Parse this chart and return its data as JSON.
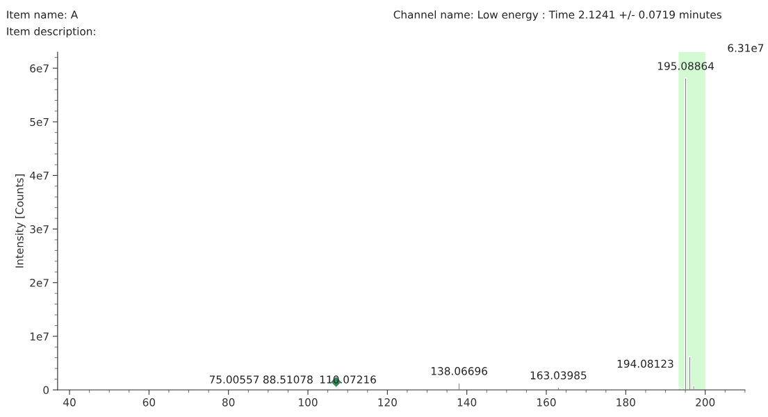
{
  "chart_data": {
    "type": "bar",
    "ylabel": "Intensity [Counts]",
    "annotations": [
      "Item name: A",
      "Item description:",
      "Channel name: Low energy : Time 2.1241 +/- 0.0719 minutes",
      "6.31e7",
      "75.00557",
      "88.51078",
      "110.07216",
      {
        "text": "138.06696",
        "x": 138.06696,
        "y": 1300000
      },
      {
        "text": "163.03985",
        "x": 163.03985,
        "y": 500000
      },
      {
        "text": "194.08123",
        "x": 194.08123,
        "y": 200000
      },
      {
        "text": "195.08864",
        "x": 195.08864,
        "y": 58200000
      }
    ],
    "series": [
      {
        "color": "#333333",
        "x": [
          138.06696,
          163.03985,
          194.08123,
          195.08864,
          196.09,
          197.09
        ],
        "values": [
          1300000,
          500000,
          200000,
          58200000,
          6200000,
          800000
        ]
      },
      {
        "type": "scatter",
        "color": "#2e8b57",
        "marker": "diamond",
        "x": [
          107.1
        ],
        "values": [
          1500000
        ]
      }
    ],
    "bands": [
      {
        "axis": "x",
        "from": 193.3,
        "to": 200,
        "color": "#d4fad4"
      }
    ],
    "xlim": [
      37,
      210
    ],
    "xticks": [
      40,
      60,
      80,
      100,
      120,
      140,
      160,
      180,
      200
    ],
    "ylim": [
      0,
      63000000
    ],
    "yticks": [
      {
        "value": 0,
        "label": "0"
      },
      {
        "value": 10000000,
        "label": "1e7"
      },
      {
        "value": 20000000,
        "label": "2e7"
      },
      {
        "value": 30000000,
        "label": "3e7"
      },
      {
        "value": 40000000,
        "label": "4e7"
      },
      {
        "value": 50000000,
        "label": "5e7"
      },
      {
        "value": 60000000,
        "label": "6e7"
      }
    ],
    "grid": false,
    "legend": false
  }
}
